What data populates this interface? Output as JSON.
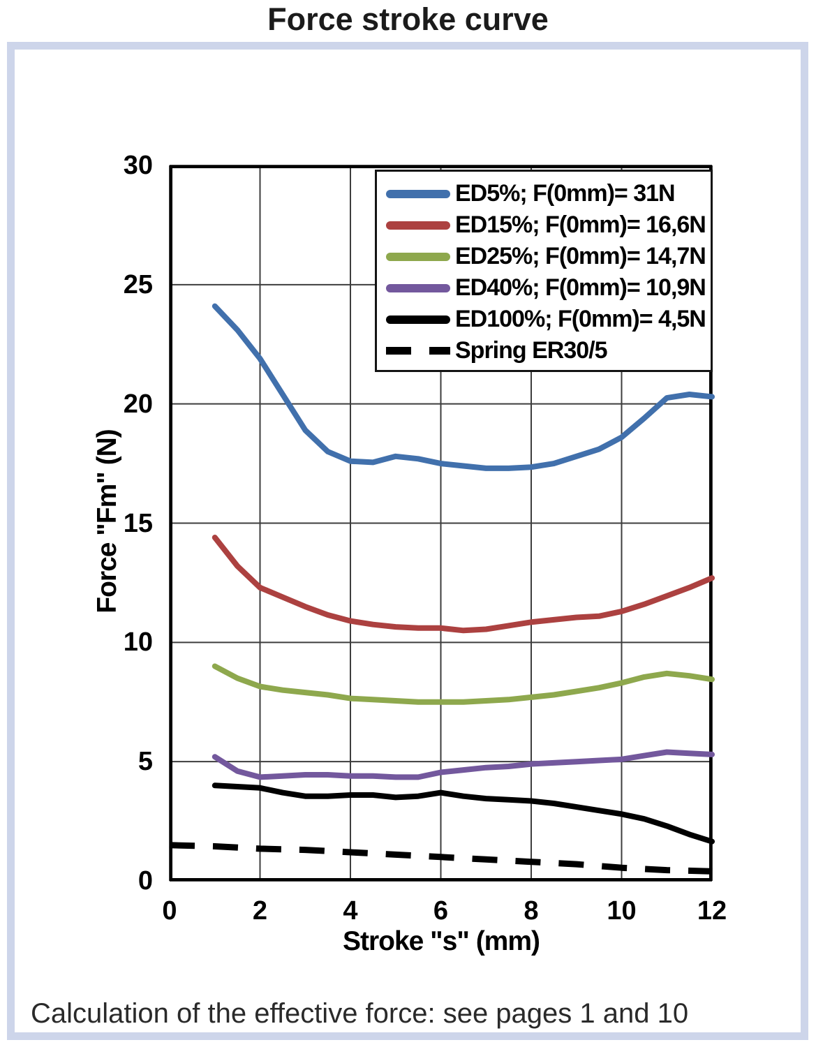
{
  "page": {
    "title": "Force stroke curve",
    "caption": "Calculation of the effective force: see pages 1 and 10"
  },
  "chart_data": {
    "type": "line",
    "title": "Force stroke curve",
    "xlabel": "Stroke \"s\" (mm)",
    "ylabel": "Force \"Fm\" (N)",
    "xlim": [
      0,
      12
    ],
    "ylim": [
      0,
      30
    ],
    "x_ticks": [
      0,
      2,
      4,
      6,
      8,
      10,
      12
    ],
    "y_ticks": [
      0,
      5,
      10,
      15,
      20,
      25,
      30
    ],
    "grid": true,
    "grid_color": "#3d3d3d",
    "axis_color": "#000000",
    "legend_position": "top-right",
    "frame_color": "#cdd5ea",
    "series": [
      {
        "name": "ED5",
        "label": "ED5%; F(0mm)= 31N",
        "color": "#4170AC",
        "dash": false,
        "x": [
          1,
          1.5,
          2,
          2.5,
          3,
          3.5,
          4,
          4.5,
          5,
          5.5,
          6,
          6.5,
          7,
          7.5,
          8,
          8.5,
          9,
          9.5,
          10,
          10.5,
          11,
          11.5,
          12
        ],
        "y": [
          24.1,
          23.1,
          21.9,
          20.4,
          18.9,
          18.0,
          17.6,
          17.55,
          17.8,
          17.7,
          17.5,
          17.4,
          17.3,
          17.3,
          17.35,
          17.5,
          17.8,
          18.1,
          18.6,
          19.4,
          20.25,
          20.4,
          20.3
        ]
      },
      {
        "name": "ED15",
        "label": "ED15%; F(0mm)= 16,6N",
        "color": "#AC4140",
        "dash": false,
        "x": [
          1,
          1.5,
          2,
          2.5,
          3,
          3.5,
          4,
          4.5,
          5,
          5.5,
          6,
          6.5,
          7,
          7.5,
          8,
          8.5,
          9,
          9.5,
          10,
          10.5,
          11,
          11.5,
          12
        ],
        "y": [
          14.4,
          13.2,
          12.3,
          11.9,
          11.5,
          11.15,
          10.9,
          10.75,
          10.65,
          10.6,
          10.6,
          10.5,
          10.55,
          10.7,
          10.85,
          10.95,
          11.05,
          11.1,
          11.3,
          11.6,
          11.95,
          12.3,
          12.7
        ]
      },
      {
        "name": "ED25",
        "label": "ED25%; F(0mm)= 14,7N",
        "color": "#8EA84D",
        "dash": false,
        "x": [
          1,
          1.5,
          2,
          2.5,
          3,
          3.5,
          4,
          4.5,
          5,
          5.5,
          6,
          6.5,
          7,
          7.5,
          8,
          8.5,
          9,
          9.5,
          10,
          10.5,
          11,
          11.5,
          12
        ],
        "y": [
          9.0,
          8.5,
          8.15,
          8.0,
          7.9,
          7.8,
          7.65,
          7.6,
          7.55,
          7.5,
          7.5,
          7.5,
          7.55,
          7.6,
          7.7,
          7.8,
          7.95,
          8.1,
          8.3,
          8.55,
          8.7,
          8.6,
          8.45
        ]
      },
      {
        "name": "ED40",
        "label": "ED40%; F(0mm)= 10,9N",
        "color": "#73589D",
        "dash": false,
        "x": [
          1,
          1.5,
          2,
          2.5,
          3,
          3.5,
          4,
          4.5,
          5,
          5.5,
          6,
          6.5,
          7,
          7.5,
          8,
          8.5,
          9,
          9.5,
          10,
          10.5,
          11,
          11.5,
          12
        ],
        "y": [
          5.2,
          4.6,
          4.35,
          4.4,
          4.45,
          4.45,
          4.4,
          4.4,
          4.35,
          4.35,
          4.55,
          4.65,
          4.75,
          4.8,
          4.9,
          4.95,
          5.0,
          5.05,
          5.1,
          5.25,
          5.4,
          5.35,
          5.3
        ]
      },
      {
        "name": "ED100",
        "label": "ED100%; F(0mm)= 4,5N",
        "color": "#000000",
        "dash": false,
        "x": [
          1,
          1.5,
          2,
          2.5,
          3,
          3.5,
          4,
          4.5,
          5,
          5.5,
          6,
          6.5,
          7,
          7.5,
          8,
          8.5,
          9,
          9.5,
          10,
          10.5,
          11,
          11.5,
          12
        ],
        "y": [
          4.0,
          3.95,
          3.9,
          3.7,
          3.55,
          3.55,
          3.6,
          3.6,
          3.5,
          3.55,
          3.7,
          3.55,
          3.45,
          3.4,
          3.35,
          3.25,
          3.1,
          2.95,
          2.8,
          2.6,
          2.3,
          1.95,
          1.65
        ]
      },
      {
        "name": "SpringER30-5",
        "label": "Spring ER30/5",
        "color": "#000000",
        "dash": true,
        "x": [
          0,
          1,
          2,
          3,
          4,
          5,
          6,
          7,
          8,
          9,
          10,
          11,
          12
        ],
        "y": [
          1.5,
          1.45,
          1.35,
          1.3,
          1.2,
          1.1,
          1.0,
          0.9,
          0.8,
          0.7,
          0.55,
          0.45,
          0.4
        ]
      }
    ]
  }
}
